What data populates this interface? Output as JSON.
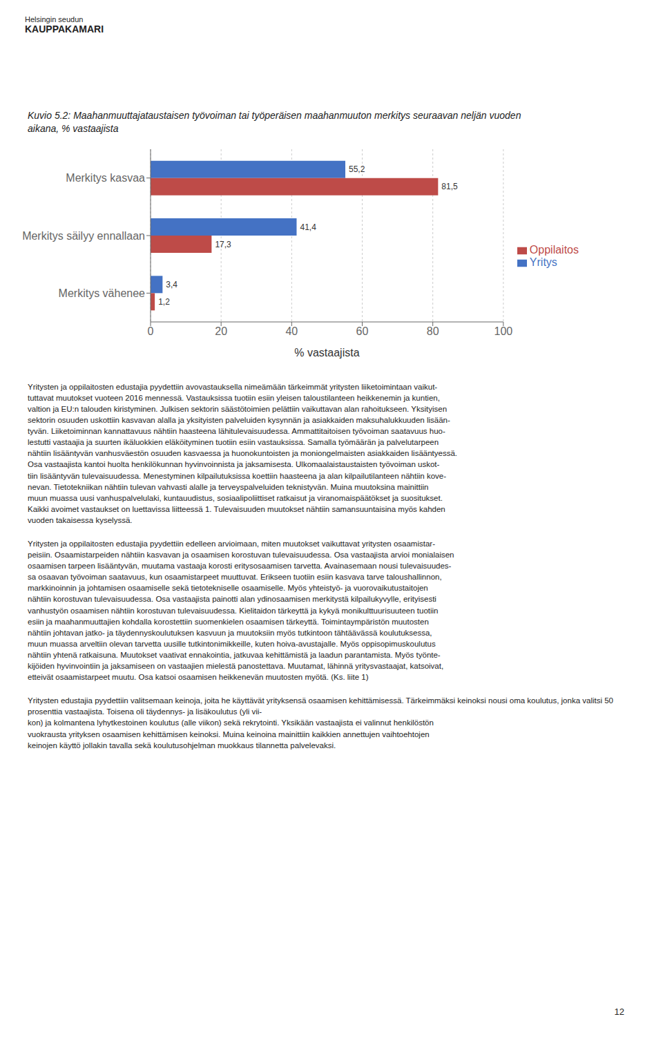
{
  "chart_data": {
    "type": "bar",
    "orientation": "horizontal",
    "title": "Kuvio 5.2: Maahanmuuttajataustaisen työvoiman tai työperäisen maahanmuuton merkitys seuraavan neljän vuoden\naikana, % vastaajista",
    "xlabel": "% vastaajista",
    "categories": [
      "Merkitys kasvaa",
      "Merkitys säilyy ennallaan",
      "Merkitys vähenee"
    ],
    "series": [
      {
        "name": "Yritys",
        "color": "#4472C4",
        "values": [
          55.2,
          41.4,
          3.4
        ],
        "value_labels": [
          "55,2",
          "41,4",
          "3,4"
        ]
      },
      {
        "name": "Oppilaitos",
        "color": "#BE4B48",
        "values": [
          81.5,
          17.3,
          1.2
        ],
        "value_labels": [
          "81,5",
          "17,3",
          "1,2"
        ]
      }
    ],
    "xlim": [
      0,
      100
    ],
    "xticks": [
      0,
      20,
      40,
      60,
      80,
      100
    ],
    "grid": true,
    "legend": "right",
    "data_labels": true,
    "annotations": [
      "Helsingin seudun",
      "KAUPPAKAMARI",
      "Yritysten ja oppilaitosten edustajia pyydettiin avovastauksella nimeämään tärkeimmät yritysten liiketoimintaan vaikut-\ntuttavat muutokset vuoteen 2016 mennessä. Vastauksissa tuotiin esiin yleisen taloustilanteen heikkenemin ja kuntien,\nvaltion ja EU:n talouden kiristyminen. Julkisen sektorin säästötoimien pelättiin vaikuttavan alan rahoitukseen. Yksityisen\nsektorin osuuden uskottiin kasvavan alalla ja yksityisten palveluiden kysynnän ja asiakkaiden maksuhalukkuuden lisään-\ntyvän. Liiketoiminnan kannattavuus nähtiin haasteena lähitulevaisuudessa. Ammattitaitoisen työvoiman saatavuus huo-\nlestutti vastaajia ja suurten ikäluokkien eläköityminen tuotiin esiin vastauksissa. Samalla työmäärän ja palvelutarpeen\nnähtiin lisääntyvän vanhusväestön osuuden kasvaessa ja huonokuntoisten ja moniongelmaisten asiakkaiden lisääntyessä.\nOsa vastaajista kantoi huolta henkilökunnan hyvinvoinnista ja jaksamisesta. Ulkomaalaistaustaisten työvoiman uskot-\ntiin lisääntyvän tulevaisuudessa. Menestyminen kilpailutuksissa koettiin haasteena ja alan kilpailutilanteen nähtiin kove-\nnevan. Tietotekniikan nähtiin tulevan vahvasti alalle ja terveyspalveluiden teknistyvän. Muina muutoksina mainittiin\nmuun muassa uusi vanhuspalvelulaki, kuntauudistus, sosiaalipoliittiset ratkaisut ja viranomaispäätökset ja suositukset.\nKaikki avoimet vastaukset on luettavissa liitteessä 1. Tulevaisuuden muutokset nähtiin samansuuntaisina myös kahden\nvuoden takaisessa kyselyssä.",
      "Yritysten ja oppilaitosten edustajia pyydettiin edelleen arvioimaan, miten muutokset vaikuttavat yritysten osaamistar-\npeisiin. Osaamistarpeiden nähtiin kasvavan ja osaamisen korostuvan tulevaisuudessa. Osa vastaajista arvioi monialaisen\nosaamisen tarpeen lisääntyvän, muutama vastaaja korosti eritysosaamisen tarvetta. Avainasemaan nousi tulevaisuudes-\nsa osaavan työvoiman saatavuus, kun osaamistarpeet muuttuvat. Erikseen tuotiin esiin kasvava tarve taloushallinnon,\nmarkkinoinnin ja johtamisen osaamiselle sekä tietotekniselle osaamiselle. Myös yhteistyö- ja vuorovaikutustaitojen\nnähtiin korostuvan tulevaisuudessa. Osa vastaajista painotti alan ydinosaamisen merkitystä kilpailukyvylle, erityisesti\nvanhustyön osaamisen nähtiin korostuvan tulevaisuudessa. Kielitaidon tärkeyttä ja kykyä monikulttuurisuuteen tuotiin\nesiin ja maahanmuuttajien kohdalla korostettiin suomenkielen osaamisen tärkeyttä. Toimintaympäristön muutosten\nnähtiin johtavan jatko- ja täydennyskoulutuksen kasvuun ja muutoksiin myös tutkintoon tähtäävässä koulutuksessa,\nmuun muassa arveltiin olevan tarvetta uusille tutkintonimikkeille, kuten hoiva-avustajalle. Myös oppisopimuskoulutus\nnähtiin yhtenä ratkaisuna. Muutokset vaativat ennakointia, jatkuvaa kehittämistä ja laadun parantamista. Myös työnte-\nkijöiden hyvinvointiin ja jaksamiseen on vastaajien mielestä panostettava. Muutamat, lähinnä yritysvastaajat, katsoivat,\netteivät osaamistarpeet muutu. Osa katsoi osaamisen heikkenevän muutosten myötä. (Ks. liite 1)",
      "Yritysten edustajia pyydettiin valitsemaan keinoja, joita he käyttävät yrityksensä osaamisen kehittämisessä. Tärkeimmäksi keinoksi nousi oma koulutus, jonka valitsi 50 prosenttia vastaajista. Toisena oli täydennys- ja lisäkoulutus (yli vii-\nkon) ja kolmantena lyhytkestoinen koulutus (alle viikon) sekä rekrytointi. Yksikään vastaajista ei valinnut henkilöstön\nvuokrausta yrityksen osaamisen kehittämisen keinoksi. Muina keinoina mainittiin kaikkien annettujen vaihtoehtojen\nkeinojen käyttö jollakin tavalla sekä koulutusohjelman muokkaus tilannetta palvelevaksi.",
      "12"
    ]
  }
}
